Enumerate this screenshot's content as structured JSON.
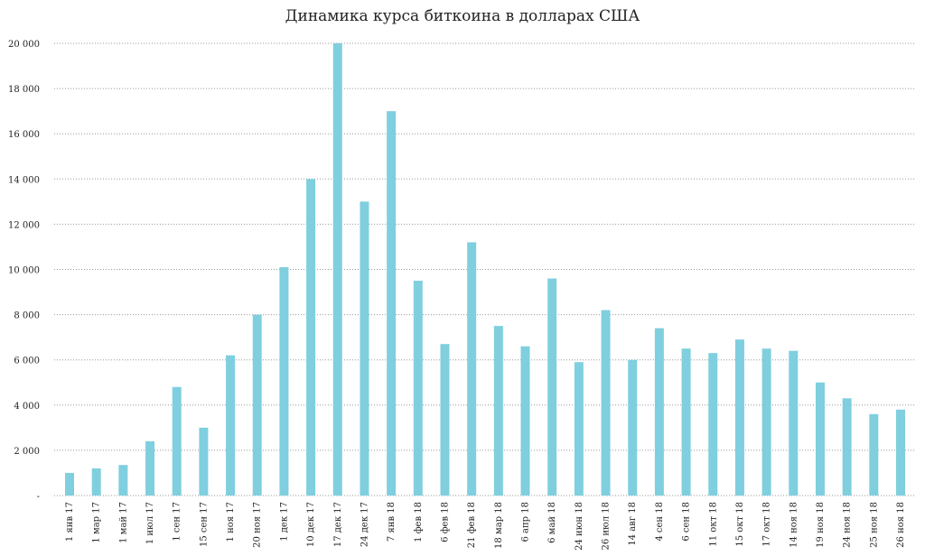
{
  "title": "Динамика курса биткоина в долларах США",
  "chart_data": {
    "type": "bar",
    "title": "Динамика курса биткоина в долларах США",
    "xlabel": "",
    "ylabel": "",
    "ylim": [
      0,
      20000
    ],
    "grid": true,
    "bar_color": "#7fcfdf",
    "y_ticks": [
      "-",
      "2 000",
      "4 000",
      "6 000",
      "8 000",
      "10 000",
      "12 000",
      "14 000",
      "16 000",
      "18 000",
      "20 000"
    ],
    "y_tick_values": [
      0,
      2000,
      4000,
      6000,
      8000,
      10000,
      12000,
      14000,
      16000,
      18000,
      20000
    ],
    "categories": [
      "1 янв 17",
      "1 мар 17",
      "1 май 17",
      "1 июл 17",
      "1 сен 17",
      "15 сен 17",
      "1 ноя 17",
      "20 ноя 17",
      "1 дек 17",
      "10 дек 17",
      "17 дек 17",
      "24 дек 17",
      "7 янв 18",
      "1 фев 18",
      "6 фев 18",
      "21 фев 18",
      "18 мар 18",
      "6 апр 18",
      "6 май 18",
      "24 июн 18",
      "26 июл 18",
      "14 авг 18",
      "4 сен 18",
      "6 сен 18",
      "11 окт 18",
      "15 окт 18",
      "17 окт 18",
      "14 ноя 18",
      "19 ноя 18",
      "24 ноя 18",
      "25 ноя 18",
      "26 ноя 18"
    ],
    "values": [
      1000,
      1200,
      1350,
      2400,
      4800,
      3000,
      6200,
      8000,
      10100,
      14000,
      20000,
      13000,
      17000,
      9500,
      6700,
      11200,
      7500,
      6600,
      9600,
      5900,
      8200,
      6000,
      7400,
      6500,
      6300,
      6900,
      6500,
      6400,
      5000,
      4300,
      3600,
      3800
    ]
  }
}
